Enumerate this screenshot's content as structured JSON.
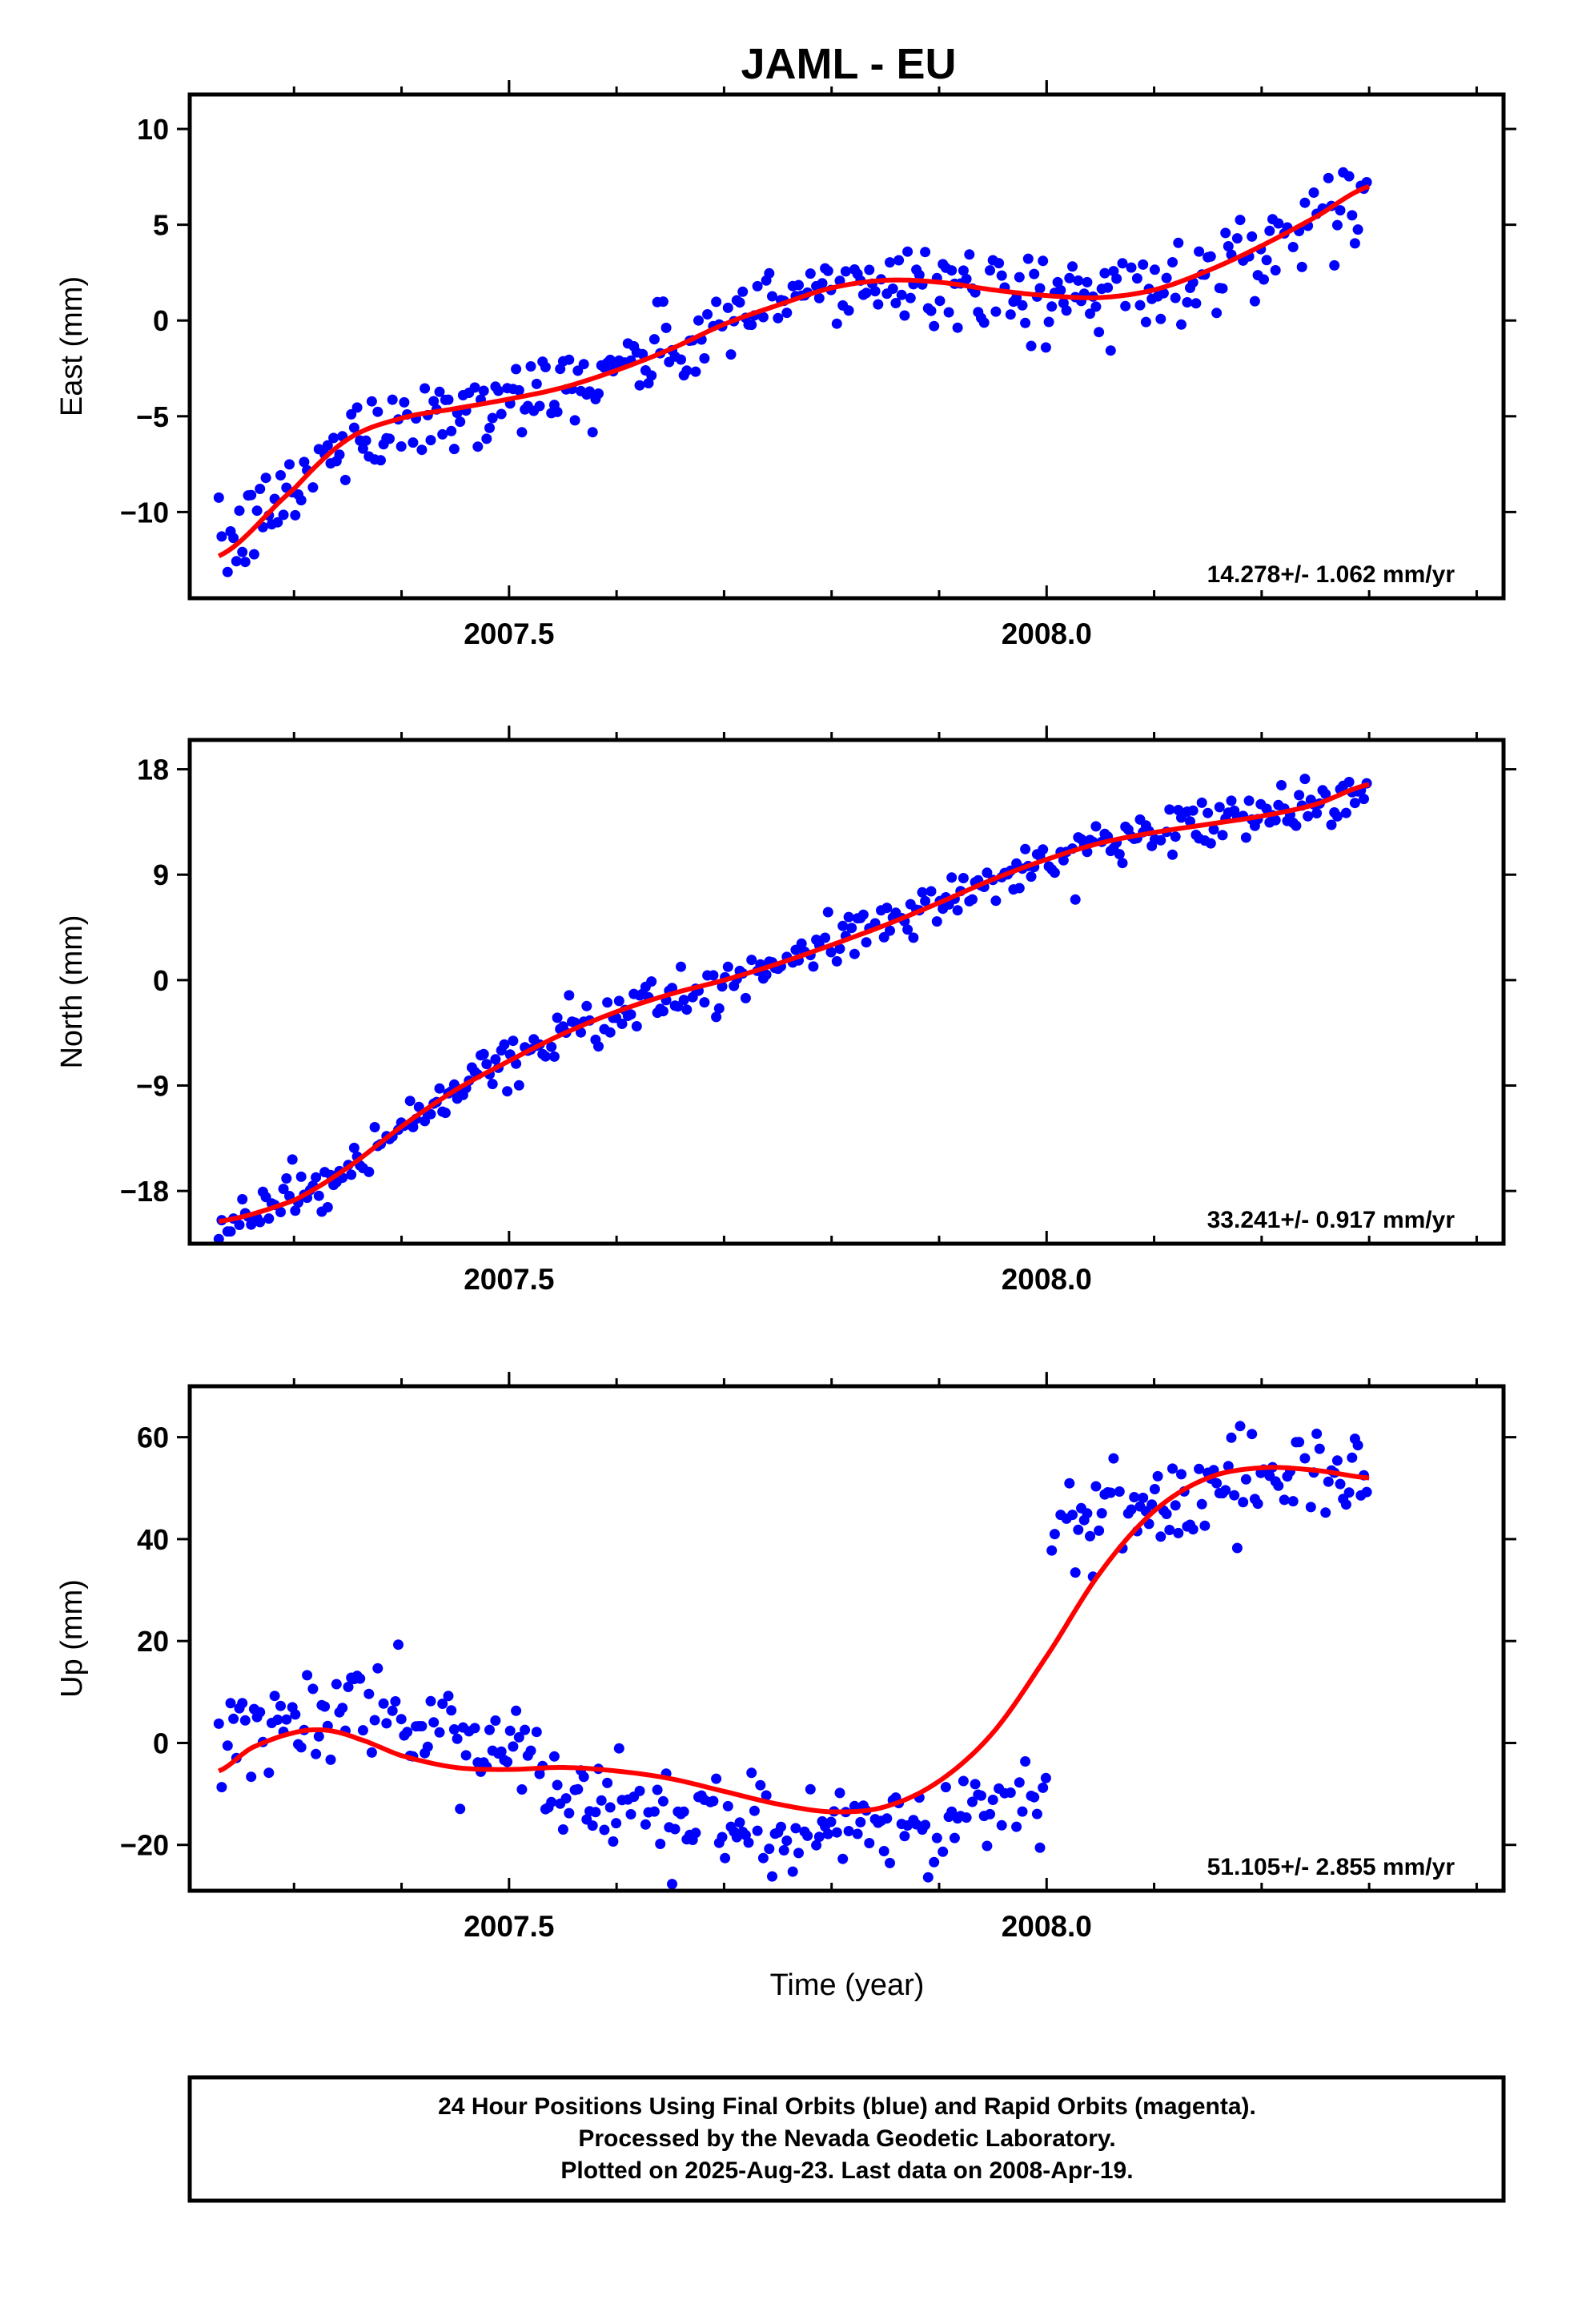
{
  "figure": {
    "title": "JAML - EU",
    "xlabel": "Time (year)",
    "footer_lines": [
      "24 Hour Positions Using Final Orbits (blue) and Rapid Orbits (magenta).",
      "Processed by the Nevada Geodetic Laboratory.",
      "Plotted on 2025-Aug-23. Last data on 2008-Apr-19."
    ]
  },
  "colors": {
    "points": "#0000ff",
    "fit": "#ff0000",
    "frame": "#000000"
  },
  "chart_data": [
    {
      "type": "scatter",
      "ylabel": "East (mm)",
      "rate_text": "14.278+/- 1.062 mm/yr",
      "xlim": [
        2007.203,
        2008.425
      ],
      "ylim": [
        -14.5,
        11.8
      ],
      "xticks": [
        2007.5,
        2008.0
      ],
      "xtick_labels": [
        "2007.5",
        "2008.0"
      ],
      "yticks": [
        10,
        5,
        0,
        -5,
        -10
      ],
      "ytick_labels": [
        "10",
        "5",
        "0",
        "−5",
        "−10"
      ],
      "fit_curve": {
        "x": [
          2007.23,
          2007.3,
          2007.35,
          2007.4,
          2007.45,
          2007.5,
          2007.55,
          2007.6,
          2007.65,
          2007.7,
          2007.75,
          2007.8,
          2007.85,
          2007.9,
          2007.95,
          2008.0,
          2008.05,
          2008.1,
          2008.15,
          2008.2,
          2008.25,
          2008.3
        ],
        "y": [
          -12.3,
          -8.8,
          -6.2,
          -5.1,
          -4.6,
          -4.1,
          -3.5,
          -2.6,
          -1.5,
          -0.2,
          0.8,
          1.7,
          2.1,
          2.0,
          1.6,
          1.3,
          1.2,
          1.6,
          2.6,
          3.9,
          5.4,
          7.0
        ]
      },
      "noise_sd": 1.1,
      "step": null
    },
    {
      "type": "scatter",
      "ylabel": "North (mm)",
      "rate_text": "33.241+/- 0.917 mm/yr",
      "xlim": [
        2007.203,
        2008.425
      ],
      "ylim": [
        -22.5,
        20.5
      ],
      "xticks": [
        2007.5,
        2008.0
      ],
      "xtick_labels": [
        "2007.5",
        "2008.0"
      ],
      "yticks": [
        18,
        9,
        0,
        -9,
        -18
      ],
      "ytick_labels": [
        "18",
        "9",
        "0",
        "−9",
        "−18"
      ],
      "fit_curve": {
        "x": [
          2007.23,
          2007.3,
          2007.35,
          2007.4,
          2007.45,
          2007.5,
          2007.55,
          2007.6,
          2007.65,
          2007.7,
          2007.75,
          2007.8,
          2007.85,
          2007.9,
          2007.95,
          2008.0,
          2008.05,
          2008.1,
          2008.15,
          2008.2,
          2008.25,
          2008.3
        ],
        "y": [
          -20.6,
          -18.8,
          -16.0,
          -12.5,
          -9.4,
          -6.9,
          -4.6,
          -2.7,
          -1.2,
          0.0,
          1.4,
          3.0,
          4.7,
          6.6,
          8.6,
          10.3,
          11.7,
          12.6,
          13.3,
          14.0,
          15.0,
          16.7
        ]
      },
      "noise_sd": 1.0,
      "step": null
    },
    {
      "type": "scatter",
      "ylabel": "Up (mm)",
      "rate_text": "51.105+/- 2.855 mm/yr",
      "xlim": [
        2007.203,
        2008.425
      ],
      "ylim": [
        -29,
        70
      ],
      "xticks": [
        2007.5,
        2008.0
      ],
      "xtick_labels": [
        "2007.5",
        "2008.0"
      ],
      "yticks": [
        60,
        40,
        20,
        0,
        -20
      ],
      "ytick_labels": [
        "60",
        "40",
        "20",
        "0",
        "−20"
      ],
      "fit_curve": {
        "x": [
          2007.23,
          2007.26,
          2007.3,
          2007.33,
          2007.36,
          2007.4,
          2007.45,
          2007.5,
          2007.55,
          2007.6,
          2007.65,
          2007.7,
          2007.75,
          2007.8,
          2007.85,
          2007.9,
          2007.95,
          2008.0,
          2008.05,
          2008.1,
          2008.15,
          2008.2,
          2008.25,
          2008.3
        ],
        "y": [
          -5.5,
          -1.0,
          2.0,
          2.5,
          0.8,
          -2.5,
          -4.8,
          -5.2,
          -4.8,
          -5.5,
          -7.0,
          -9.5,
          -12.0,
          -13.5,
          -12.5,
          -7.5,
          2.0,
          17.0,
          33.5,
          45.5,
          52.0,
          54.0,
          53.5,
          52.0
        ]
      },
      "noise_sd": 5.0,
      "step": {
        "x": 2008.0,
        "before_offset": -4.0,
        "after_offset": -2.0,
        "segments": [
          {
            "x0": 2007.23,
            "x1": 2007.99,
            "mean": [
              [
                2007.23,
                -1
              ],
              [
                2007.3,
                3
              ],
              [
                2007.36,
                8
              ],
              [
                2007.42,
                2
              ],
              [
                2007.48,
                0
              ],
              [
                2007.55,
                -10
              ],
              [
                2007.62,
                -12
              ],
              [
                2007.7,
                -15
              ],
              [
                2007.78,
                -17
              ],
              [
                2007.86,
                -16
              ],
              [
                2007.93,
                -15
              ],
              [
                2007.99,
                -10
              ]
            ]
          },
          {
            "x0": 2008.0,
            "x1": 2008.3,
            "mean": [
              [
                2008.0,
                44
              ],
              [
                2008.05,
                44
              ],
              [
                2008.1,
                46
              ],
              [
                2008.15,
                50
              ],
              [
                2008.2,
                53
              ],
              [
                2008.25,
                54
              ],
              [
                2008.3,
                55
              ]
            ]
          }
        ]
      }
    }
  ]
}
